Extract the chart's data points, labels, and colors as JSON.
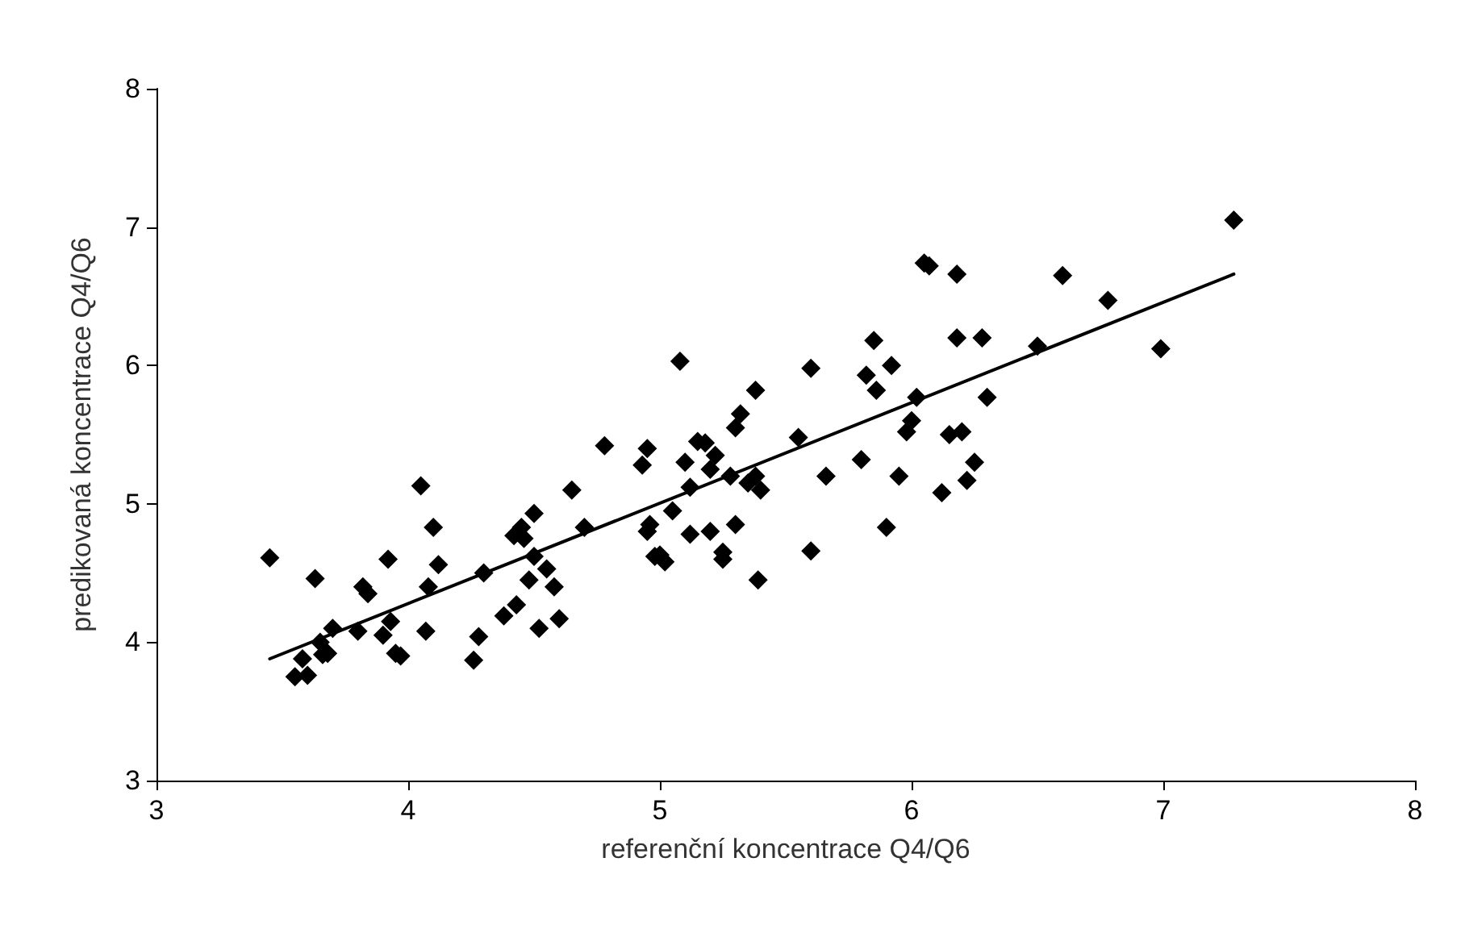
{
  "chart_data": {
    "type": "scatter",
    "xlabel": "referenční koncentrace Q4/Q6",
    "ylabel": "predikovaná koncentrace Q4/Q6",
    "xlim": [
      3,
      8
    ],
    "xticks": [
      3,
      4,
      5,
      6,
      7,
      8
    ],
    "ylim": [
      3,
      8
    ],
    "yticks": [
      3,
      4,
      5,
      6,
      7,
      8
    ],
    "grid": false,
    "series": [
      {
        "color": "#000000",
        "marker": "diamond",
        "x": [
          3.45,
          3.55,
          3.6,
          3.58,
          3.63,
          3.65,
          3.66,
          3.68,
          3.7,
          3.8,
          3.82,
          3.84,
          3.9,
          3.92,
          3.93,
          3.95,
          3.97,
          4.05,
          4.07,
          4.08,
          4.1,
          4.12,
          4.26,
          4.28,
          4.3,
          4.38,
          4.42,
          4.43,
          4.45,
          4.46,
          4.48,
          4.5,
          4.5,
          4.52,
          4.55,
          4.58,
          4.6,
          4.65,
          4.7,
          4.78,
          4.93,
          4.95,
          4.95,
          4.96,
          4.98,
          5.0,
          5.02,
          5.05,
          5.08,
          5.1,
          5.12,
          5.12,
          5.15,
          5.18,
          5.2,
          5.2,
          5.22,
          5.25,
          5.25,
          5.28,
          5.3,
          5.3,
          5.32,
          5.35,
          5.38,
          5.38,
          5.4,
          5.39,
          5.55,
          5.6,
          5.6,
          5.66,
          5.8,
          5.82,
          5.85,
          5.86,
          5.9,
          5.92,
          5.95,
          5.98,
          6.0,
          6.02,
          6.05,
          6.07,
          6.12,
          6.15,
          6.18,
          6.18,
          6.2,
          6.22,
          6.25,
          6.28,
          6.3,
          6.5,
          6.6,
          6.78,
          6.99,
          7.28
        ],
        "values": [
          4.61,
          3.75,
          3.76,
          3.88,
          4.46,
          4.0,
          3.91,
          3.92,
          4.1,
          4.08,
          4.4,
          4.35,
          4.05,
          4.6,
          4.15,
          3.92,
          3.9,
          5.13,
          4.08,
          4.4,
          4.83,
          4.56,
          3.87,
          4.04,
          4.5,
          4.19,
          4.77,
          4.27,
          4.83,
          4.75,
          4.45,
          4.62,
          4.93,
          4.1,
          4.53,
          4.4,
          4.17,
          5.1,
          4.83,
          5.42,
          5.28,
          4.8,
          5.4,
          4.85,
          4.62,
          4.63,
          4.58,
          4.95,
          6.03,
          5.3,
          4.78,
          5.12,
          5.45,
          5.44,
          5.25,
          4.8,
          5.35,
          4.6,
          4.65,
          5.2,
          5.55,
          4.85,
          5.65,
          5.15,
          5.82,
          5.2,
          5.1,
          4.45,
          5.48,
          5.98,
          4.66,
          5.2,
          5.32,
          5.93,
          6.18,
          5.82,
          4.83,
          6.0,
          5.2,
          5.52,
          5.6,
          5.77,
          6.74,
          6.72,
          5.08,
          5.5,
          6.66,
          6.2,
          5.52,
          5.17,
          5.3,
          6.2,
          5.77,
          6.14,
          6.65,
          6.47,
          6.12,
          7.05
        ]
      },
      {
        "type": "line",
        "color": "#000000",
        "marker": "none",
        "line_style": "solid",
        "x": [
          3.45,
          7.28
        ],
        "values": [
          3.88,
          6.66
        ]
      }
    ]
  }
}
